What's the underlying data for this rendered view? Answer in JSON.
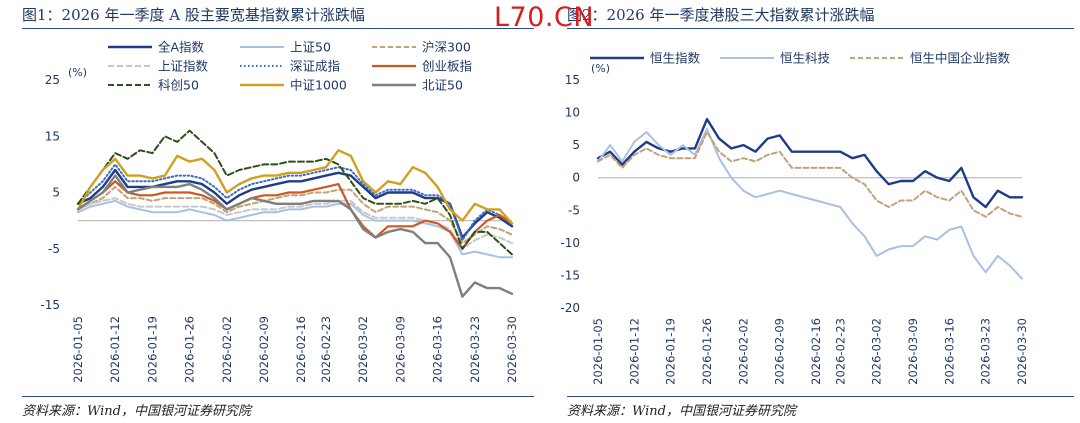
{
  "watermark": "L70.CN",
  "left": {
    "title": "图1：2026 年一季度 A 股主要宽基指数累计涨跌幅",
    "source": "资料来源：Wind，中国银河证券研究院"
  },
  "right": {
    "title": "图2：2026 年一季度港股三大指数累计涨跌幅",
    "source": "资料来源：Wind，中国银河证券研究院"
  },
  "colors": {
    "navy": "#1f3c88",
    "lightblue": "#a9c0e4",
    "tan": "#c3a27a",
    "lightgray": "#c8c8c8",
    "dotblue": "#3a6cc8",
    "orange": "#cc5a1e",
    "darkgreen": "#2f5018",
    "gold": "#d0a020",
    "gray": "#7f7f7f"
  },
  "chart_data": [
    {
      "type": "line",
      "unit": "(%)",
      "ylim": [
        -15,
        25
      ],
      "yticks": [
        25,
        15,
        5,
        -5,
        -15
      ],
      "x": [
        "2026-01-05",
        "2026-01-07",
        "2026-01-09",
        "2026-01-12",
        "2026-01-14",
        "2026-01-16",
        "2026-01-19",
        "2026-01-21",
        "2026-01-23",
        "2026-01-26",
        "2026-01-28",
        "2026-01-30",
        "2026-02-02",
        "2026-02-04",
        "2026-02-06",
        "2026-02-09",
        "2026-02-11",
        "2026-02-13",
        "2026-02-16",
        "2026-02-20",
        "2026-02-23",
        "2026-02-25",
        "2026-02-27",
        "2026-03-02",
        "2026-03-04",
        "2026-03-06",
        "2026-03-09",
        "2026-03-11",
        "2026-03-13",
        "2026-03-16",
        "2026-03-18",
        "2026-03-20",
        "2026-03-23",
        "2026-03-25",
        "2026-03-27",
        "2026-03-30"
      ],
      "xticks": [
        "2026-01-05",
        "2026-01-12",
        "2026-01-19",
        "2026-01-26",
        "2026-02-02",
        "2026-02-09",
        "2026-02-16",
        "2026-02-23",
        "2026-03-02",
        "2026-03-09",
        "2026-03-16",
        "2026-03-23",
        "2026-03-30"
      ],
      "legend_cols": 3,
      "series": [
        {
          "name": "全A指数",
          "color": "#1f3c88",
          "width": 2.4,
          "dash": "",
          "values": [
            3,
            4,
            6,
            9,
            6,
            6,
            6,
            6.5,
            7,
            7,
            6.5,
            5,
            3,
            4.5,
            5.5,
            6,
            6.5,
            7,
            7,
            7.5,
            8,
            8.5,
            8,
            6,
            4,
            5,
            5,
            5,
            4,
            4,
            3,
            -3,
            -0.5,
            1.5,
            0.5,
            -1
          ]
        },
        {
          "name": "上证50",
          "color": "#a9c0e4",
          "width": 2.0,
          "dash": "",
          "values": [
            1.5,
            2.5,
            3,
            3.5,
            2.5,
            2,
            1.5,
            1.5,
            1.5,
            2,
            1.5,
            1,
            0,
            0.5,
            1,
            1.5,
            1.5,
            2,
            2,
            2.5,
            2.5,
            3,
            3,
            1,
            0,
            0,
            0,
            0,
            -0.5,
            -1,
            -2,
            -6,
            -5.5,
            -6,
            -6.5,
            -6.5
          ]
        },
        {
          "name": "沪深300",
          "color": "#c3a27a",
          "width": 2.0,
          "dash": "5,3",
          "values": [
            2,
            3,
            4,
            6,
            4,
            4,
            3.5,
            4,
            4,
            4,
            4,
            3,
            1.5,
            2.5,
            3,
            3.5,
            4,
            4.5,
            4.5,
            5,
            5,
            5.5,
            5.5,
            3,
            1.5,
            2.5,
            2.5,
            2.5,
            2,
            1.5,
            0,
            -4,
            -2.5,
            -1,
            -1.5,
            -2.5
          ]
        },
        {
          "name": "上证指数",
          "color": "#c8c8c8",
          "width": 2.0,
          "dash": "6,3",
          "values": [
            2,
            3,
            3.5,
            4,
            3,
            2.5,
            2.5,
            2.5,
            2.5,
            2.5,
            2.5,
            2,
            1,
            1.5,
            2,
            2,
            2,
            2.5,
            2.5,
            3,
            3,
            3.5,
            3.5,
            1.5,
            0.5,
            0.5,
            0.5,
            0.5,
            0,
            -0.5,
            -1.5,
            -5,
            -3.5,
            -2.5,
            -3,
            -4
          ]
        },
        {
          "name": "深证成指",
          "color": "#3a6cc8",
          "width": 2.0,
          "dash": "1.5,2.5",
          "values": [
            3,
            5,
            7,
            10,
            7,
            7,
            7,
            7.5,
            8,
            8,
            7.5,
            6,
            4,
            5.5,
            6.5,
            7,
            7.5,
            8,
            8,
            8.5,
            9,
            9.5,
            9,
            6.5,
            4.5,
            5.5,
            5.5,
            5.5,
            4.5,
            4.5,
            3,
            -3.5,
            0,
            2,
            1,
            -0.5
          ]
        },
        {
          "name": "创业板指",
          "color": "#cc5a1e",
          "width": 2.2,
          "dash": "",
          "values": [
            2,
            3.5,
            5,
            7,
            5,
            4.5,
            4.5,
            5,
            5,
            5,
            4.5,
            3.5,
            2,
            3,
            4,
            4.5,
            4.5,
            5,
            5,
            5.5,
            6,
            6.5,
            2,
            -1,
            -3,
            -1,
            -1,
            -1,
            0,
            -0.5,
            -2,
            -5,
            -2,
            0,
            1,
            -0.5
          ]
        },
        {
          "name": "科创50",
          "color": "#2f5018",
          "width": 2.0,
          "dash": "6,3",
          "values": [
            3,
            6,
            9,
            12,
            11,
            12.5,
            12,
            15,
            14,
            16,
            14,
            12,
            8,
            9,
            9.5,
            10,
            10,
            10.5,
            10.5,
            10.5,
            11,
            10,
            7,
            4,
            3,
            3,
            3,
            3.5,
            3,
            4,
            1,
            -5,
            -2,
            -2,
            -4,
            -6
          ]
        },
        {
          "name": "中证1000",
          "color": "#d0a020",
          "width": 2.4,
          "dash": "",
          "values": [
            2,
            6,
            9,
            11,
            8,
            8,
            7.5,
            8,
            11.5,
            10.5,
            11,
            9,
            5,
            6.5,
            7.5,
            8,
            8,
            8.5,
            8.5,
            9,
            9.5,
            12.5,
            11.5,
            7,
            5,
            7,
            6.5,
            9.5,
            8.5,
            6,
            2,
            0,
            3,
            2,
            2,
            -0.5
          ]
        },
        {
          "name": "北证50",
          "color": "#7f7f7f",
          "width": 2.4,
          "dash": "",
          "values": [
            2,
            3.5,
            5,
            8,
            5,
            5.5,
            6,
            6,
            6,
            6.5,
            5.5,
            4,
            2,
            3,
            4,
            3.5,
            3,
            3,
            3,
            3.5,
            3.5,
            3.5,
            2,
            -1.5,
            -3,
            -2,
            -1.5,
            -2,
            -4,
            -4,
            -6.5,
            -13.5,
            -11,
            -12,
            -12,
            -13
          ]
        }
      ]
    },
    {
      "type": "line",
      "unit": "(%)",
      "ylim": [
        -20,
        15
      ],
      "yticks": [
        15,
        10,
        5,
        0,
        -5,
        -10,
        -15,
        -20
      ],
      "x": [
        "2026-01-05",
        "2026-01-07",
        "2026-01-09",
        "2026-01-12",
        "2026-01-14",
        "2026-01-16",
        "2026-01-19",
        "2026-01-21",
        "2026-01-23",
        "2026-01-26",
        "2026-01-28",
        "2026-01-30",
        "2026-02-02",
        "2026-02-04",
        "2026-02-06",
        "2026-02-09",
        "2026-02-11",
        "2026-02-13",
        "2026-02-16",
        "2026-02-20",
        "2026-02-23",
        "2026-02-25",
        "2026-02-27",
        "2026-03-02",
        "2026-03-04",
        "2026-03-06",
        "2026-03-09",
        "2026-03-11",
        "2026-03-13",
        "2026-03-16",
        "2026-03-18",
        "2026-03-20",
        "2026-03-23",
        "2026-03-25",
        "2026-03-27",
        "2026-03-30"
      ],
      "xticks": [
        "2026-01-05",
        "2026-01-12",
        "2026-01-19",
        "2026-01-26",
        "2026-02-02",
        "2026-02-09",
        "2026-02-16",
        "2026-02-23",
        "2026-03-02",
        "2026-03-09",
        "2026-03-16",
        "2026-03-23",
        "2026-03-30"
      ],
      "legend_cols": 3,
      "series": [
        {
          "name": "恒生指数",
          "color": "#1f3c88",
          "width": 2.4,
          "dash": "",
          "values": [
            3,
            4,
            2,
            4,
            5.5,
            4.5,
            4,
            4.5,
            4.5,
            9,
            6,
            4.5,
            5,
            4,
            6,
            6.5,
            4,
            4,
            4,
            4,
            4,
            3,
            3.5,
            1,
            -1,
            -0.5,
            -0.5,
            1,
            0,
            -0.5,
            1.5,
            -3,
            -4.5,
            -2,
            -3,
            -3
          ]
        },
        {
          "name": "恒生科技",
          "color": "#a9c0e4",
          "width": 2.0,
          "dash": "",
          "values": [
            2.5,
            5,
            2.5,
            5.5,
            7,
            5,
            3.5,
            5,
            3.5,
            7.5,
            3,
            0,
            -2,
            -3,
            -2.5,
            -2,
            -2.5,
            -3,
            -3.5,
            -4,
            -4.5,
            -7,
            -9,
            -12,
            -11,
            -10.5,
            -10.5,
            -9,
            -9.5,
            -8,
            -7.5,
            -12,
            -14.5,
            -12,
            -13.5,
            -15.5
          ]
        },
        {
          "name": "恒生中国企业指数",
          "color": "#c3a27a",
          "width": 2.0,
          "dash": "5,3",
          "values": [
            2.5,
            3.5,
            1.5,
            3.5,
            4.5,
            3.5,
            3,
            3,
            3,
            7,
            4,
            2.5,
            3,
            2.5,
            3.5,
            4,
            1.5,
            1.5,
            1.5,
            1.5,
            1.5,
            0,
            -1,
            -3.5,
            -4.5,
            -3.5,
            -3.5,
            -2,
            -3,
            -3.5,
            -2,
            -5,
            -6,
            -4.5,
            -5.5,
            -6
          ]
        }
      ]
    }
  ]
}
